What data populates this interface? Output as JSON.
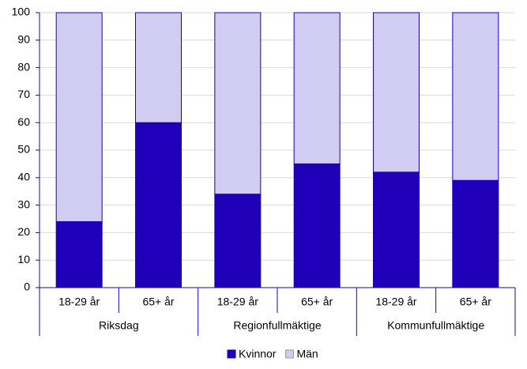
{
  "chart_data": {
    "type": "bar",
    "stacked": true,
    "categories": [
      "18-29 år",
      "65+ år",
      "18-29 år",
      "65+ år",
      "18-29 år",
      "65+ år"
    ],
    "groups": [
      "Riksdag",
      "Regionfullmäktige",
      "Kommunfullmäktige"
    ],
    "series": [
      {
        "name": "Kvinnor",
        "color": "#1f00b8",
        "values": [
          24,
          60,
          34,
          45,
          42,
          39
        ]
      },
      {
        "name": "Män",
        "color": "#d0ccf2",
        "values": [
          76,
          40,
          66,
          55,
          58,
          61
        ]
      }
    ],
    "ylim": [
      0,
      100
    ],
    "yticks": [
      0,
      10,
      20,
      30,
      40,
      50,
      60,
      70,
      80,
      90,
      100
    ],
    "grid": true,
    "legend": "bottom"
  }
}
